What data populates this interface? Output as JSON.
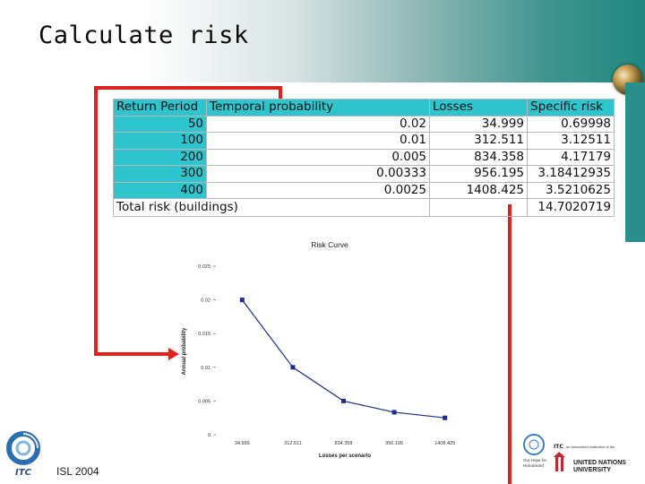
{
  "slide": {
    "title": "Calculate risk",
    "footer": "ISL 2004",
    "logo_itc_text": "ITC",
    "partner_line": "an Associated Institution of the",
    "un_line1": "UNITED NATIONS",
    "un_line2": "UNIVERSITY",
    "ourhope_line1": "Our Hope for",
    "ourhope_line2": "Humankind"
  },
  "risk_table": {
    "headers": [
      "Return  Period",
      "Temporal probability",
      "Losses",
      "Specific risk"
    ],
    "rows": [
      {
        "period": "50",
        "prob": "0.02",
        "loss": "34.999",
        "risk": "0.69998"
      },
      {
        "period": "100",
        "prob": "0.01",
        "loss": "312.511",
        "risk": "3.12511"
      },
      {
        "period": "200",
        "prob": "0.005",
        "loss": "834.358",
        "risk": "4.17179"
      },
      {
        "period": "300",
        "prob": "0.00333",
        "loss": "956.195",
        "risk": "3.18412935"
      },
      {
        "period": "400",
        "prob": "0.0025",
        "loss": "1408.425",
        "risk": "3.5210625"
      }
    ],
    "total_label": "Total risk (buildings)",
    "total_value": "14.7020719"
  },
  "chart_data": {
    "type": "line",
    "title": "Risk Curve",
    "xlabel": "Losses per scenario",
    "ylabel": "Annual probability",
    "categories": [
      "34.999",
      "312.511",
      "834.358",
      "956.195",
      "1408.425"
    ],
    "values": [
      0.02,
      0.01,
      0.005,
      0.00333,
      0.0025
    ],
    "ylim": [
      0,
      0.025
    ],
    "yticks": [
      "0",
      "0.005",
      "0.01",
      "0.015",
      "0.02",
      "0.025"
    ],
    "line_color": "#1c2e8c",
    "grid": false
  },
  "colors": {
    "accent_teal": "#2ec5cf",
    "arrow_red": "#e0211e"
  }
}
